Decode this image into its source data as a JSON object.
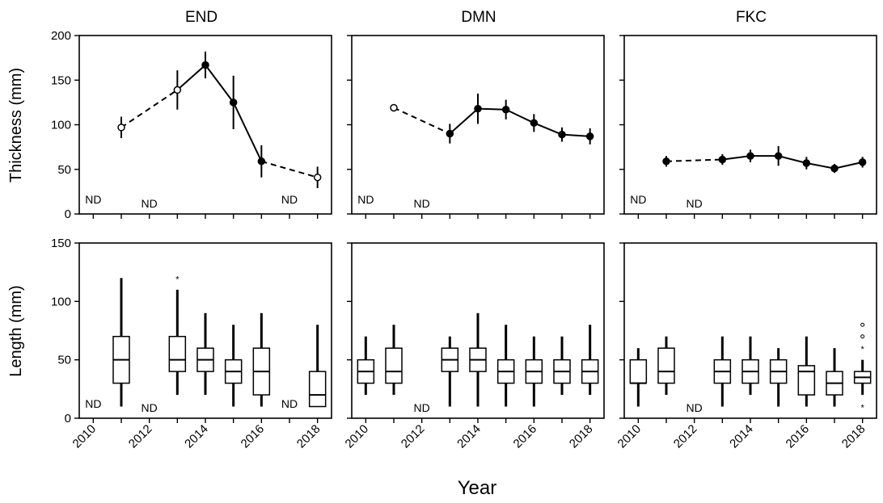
{
  "figure": {
    "xlabel": "Year",
    "row_labels": [
      "Thickness (mm)",
      "Length (mm)"
    ],
    "panel_titles": [
      "END",
      "DMN",
      "FKC"
    ],
    "nd_label": "ND"
  },
  "chart_data": [
    {
      "type": "line",
      "panel": "END",
      "ylabel": "Thickness (mm)",
      "ylim": [
        0,
        200
      ],
      "yticks": [
        0,
        50,
        100,
        150,
        200
      ],
      "xlim": [
        2009.5,
        2018.5
      ],
      "xticks": [
        2010,
        2012,
        2014,
        2016,
        2018
      ],
      "points": [
        {
          "x": 2011,
          "y": 97,
          "err": 12,
          "open": true
        },
        {
          "x": 2013,
          "y": 139,
          "err": 22,
          "open": true
        },
        {
          "x": 2014,
          "y": 167,
          "err": 15,
          "open": false
        },
        {
          "x": 2015,
          "y": 125,
          "err": 30,
          "open": false
        },
        {
          "x": 2016,
          "y": 59,
          "err": 18,
          "open": false
        },
        {
          "x": 2018,
          "y": 41,
          "err": 12,
          "open": true
        }
      ],
      "segments": [
        {
          "from": 2011,
          "to": 2013,
          "style": "dashed"
        },
        {
          "from": 2013,
          "to": 2014,
          "style": "solid"
        },
        {
          "from": 2014,
          "to": 2015,
          "style": "solid"
        },
        {
          "from": 2015,
          "to": 2016,
          "style": "solid"
        },
        {
          "from": 2016,
          "to": 2018,
          "style": "dashed"
        }
      ],
      "nd": [
        2010,
        2012,
        2017
      ]
    },
    {
      "type": "line",
      "panel": "DMN",
      "ylim": [
        0,
        200
      ],
      "xlim": [
        2009.5,
        2018.5
      ],
      "points": [
        {
          "x": 2011,
          "y": 119,
          "err": 4,
          "open": true
        },
        {
          "x": 2013,
          "y": 90,
          "err": 11,
          "open": false
        },
        {
          "x": 2014,
          "y": 118,
          "err": 17,
          "open": false
        },
        {
          "x": 2015,
          "y": 117,
          "err": 11,
          "open": false
        },
        {
          "x": 2016,
          "y": 102,
          "err": 10,
          "open": false
        },
        {
          "x": 2017,
          "y": 89,
          "err": 8,
          "open": false
        },
        {
          "x": 2018,
          "y": 87,
          "err": 9,
          "open": false
        }
      ],
      "segments": [
        {
          "from": 2011,
          "to": 2013,
          "style": "dashed"
        },
        {
          "from": 2013,
          "to": 2014,
          "style": "solid"
        },
        {
          "from": 2014,
          "to": 2015,
          "style": "solid"
        },
        {
          "from": 2015,
          "to": 2016,
          "style": "solid"
        },
        {
          "from": 2016,
          "to": 2017,
          "style": "solid"
        },
        {
          "from": 2017,
          "to": 2018,
          "style": "solid"
        }
      ],
      "nd": [
        2010,
        2012
      ]
    },
    {
      "type": "line",
      "panel": "FKC",
      "ylim": [
        0,
        200
      ],
      "xlim": [
        2009.5,
        2018.5
      ],
      "points": [
        {
          "x": 2011,
          "y": 59,
          "err": 6,
          "open": false
        },
        {
          "x": 2013,
          "y": 61,
          "err": 6,
          "open": false
        },
        {
          "x": 2014,
          "y": 65,
          "err": 7,
          "open": false
        },
        {
          "x": 2015,
          "y": 65,
          "err": 11,
          "open": false
        },
        {
          "x": 2016,
          "y": 57,
          "err": 7,
          "open": false
        },
        {
          "x": 2017,
          "y": 51,
          "err": 5,
          "open": false
        },
        {
          "x": 2018,
          "y": 58,
          "err": 6,
          "open": false
        }
      ],
      "segments": [
        {
          "from": 2011,
          "to": 2013,
          "style": "dashed"
        },
        {
          "from": 2013,
          "to": 2014,
          "style": "solid"
        },
        {
          "from": 2014,
          "to": 2015,
          "style": "solid"
        },
        {
          "from": 2015,
          "to": 2016,
          "style": "solid"
        },
        {
          "from": 2016,
          "to": 2017,
          "style": "solid"
        },
        {
          "from": 2017,
          "to": 2018,
          "style": "solid"
        }
      ],
      "nd": [
        2010,
        2012
      ]
    },
    {
      "type": "box",
      "panel": "END",
      "ylabel": "Length (mm)",
      "ylim": [
        0,
        150
      ],
      "yticks": [
        0,
        50,
        100,
        150
      ],
      "xlim": [
        2009.5,
        2018.5
      ],
      "xticks": [
        2010,
        2012,
        2014,
        2016,
        2018
      ],
      "boxes": [
        {
          "x": 2011,
          "min": 10,
          "q1": 30,
          "median": 50,
          "q3": 70,
          "max": 120,
          "outliers": []
        },
        {
          "x": 2013,
          "min": 20,
          "q1": 40,
          "median": 50,
          "q3": 70,
          "max": 110,
          "outliers": [
            {
              "y": 120,
              "kind": "star"
            }
          ]
        },
        {
          "x": 2014,
          "min": 20,
          "q1": 40,
          "median": 50,
          "q3": 60,
          "max": 90,
          "outliers": []
        },
        {
          "x": 2015,
          "min": 10,
          "q1": 30,
          "median": 40,
          "q3": 50,
          "max": 80,
          "outliers": []
        },
        {
          "x": 2016,
          "min": 10,
          "q1": 20,
          "median": 40,
          "q3": 60,
          "max": 90,
          "outliers": []
        },
        {
          "x": 2018,
          "min": 10,
          "q1": 10,
          "median": 20,
          "q3": 40,
          "max": 80,
          "outliers": []
        }
      ],
      "nd": [
        2010,
        2012,
        2017
      ]
    },
    {
      "type": "box",
      "panel": "DMN",
      "ylim": [
        0,
        150
      ],
      "xlim": [
        2009.5,
        2018.5
      ],
      "boxes": [
        {
          "x": 2010,
          "min": 20,
          "q1": 30,
          "median": 40,
          "q3": 50,
          "max": 70,
          "outliers": []
        },
        {
          "x": 2011,
          "min": 20,
          "q1": 30,
          "median": 40,
          "q3": 60,
          "max": 80,
          "outliers": []
        },
        {
          "x": 2013,
          "min": 10,
          "q1": 40,
          "median": 50,
          "q3": 60,
          "max": 70,
          "outliers": []
        },
        {
          "x": 2014,
          "min": 10,
          "q1": 40,
          "median": 50,
          "q3": 60,
          "max": 90,
          "outliers": []
        },
        {
          "x": 2015,
          "min": 10,
          "q1": 30,
          "median": 40,
          "q3": 50,
          "max": 80,
          "outliers": []
        },
        {
          "x": 2016,
          "min": 10,
          "q1": 30,
          "median": 40,
          "q3": 50,
          "max": 70,
          "outliers": []
        },
        {
          "x": 2017,
          "min": 20,
          "q1": 30,
          "median": 40,
          "q3": 50,
          "max": 70,
          "outliers": []
        },
        {
          "x": 2018,
          "min": 20,
          "q1": 30,
          "median": 40,
          "q3": 50,
          "max": 80,
          "outliers": []
        }
      ],
      "nd": [
        2012
      ]
    },
    {
      "type": "box",
      "panel": "FKC",
      "ylim": [
        0,
        150
      ],
      "xlim": [
        2009.5,
        2018.5
      ],
      "boxes": [
        {
          "x": 2010,
          "min": 10,
          "q1": 30,
          "median": 30,
          "q3": 50,
          "max": 60,
          "outliers": []
        },
        {
          "x": 2011,
          "min": 20,
          "q1": 30,
          "median": 40,
          "q3": 60,
          "max": 70,
          "outliers": []
        },
        {
          "x": 2013,
          "min": 10,
          "q1": 30,
          "median": 40,
          "q3": 50,
          "max": 70,
          "outliers": []
        },
        {
          "x": 2014,
          "min": 20,
          "q1": 30,
          "median": 40,
          "q3": 50,
          "max": 70,
          "outliers": []
        },
        {
          "x": 2015,
          "min": 10,
          "q1": 30,
          "median": 40,
          "q3": 50,
          "max": 60,
          "outliers": []
        },
        {
          "x": 2016,
          "min": 10,
          "q1": 20,
          "median": 40,
          "q3": 45,
          "max": 70,
          "outliers": []
        },
        {
          "x": 2017,
          "min": 10,
          "q1": 20,
          "median": 30,
          "q3": 40,
          "max": 60,
          "outliers": []
        },
        {
          "x": 2018,
          "min": 20,
          "q1": 30,
          "median": 35,
          "q3": 40,
          "max": 50,
          "outliers": [
            {
              "y": 10,
              "kind": "star"
            },
            {
              "y": 60,
              "kind": "star"
            },
            {
              "y": 70,
              "kind": "circle"
            },
            {
              "y": 80,
              "kind": "circle"
            }
          ]
        }
      ],
      "nd": [
        2012
      ]
    }
  ]
}
